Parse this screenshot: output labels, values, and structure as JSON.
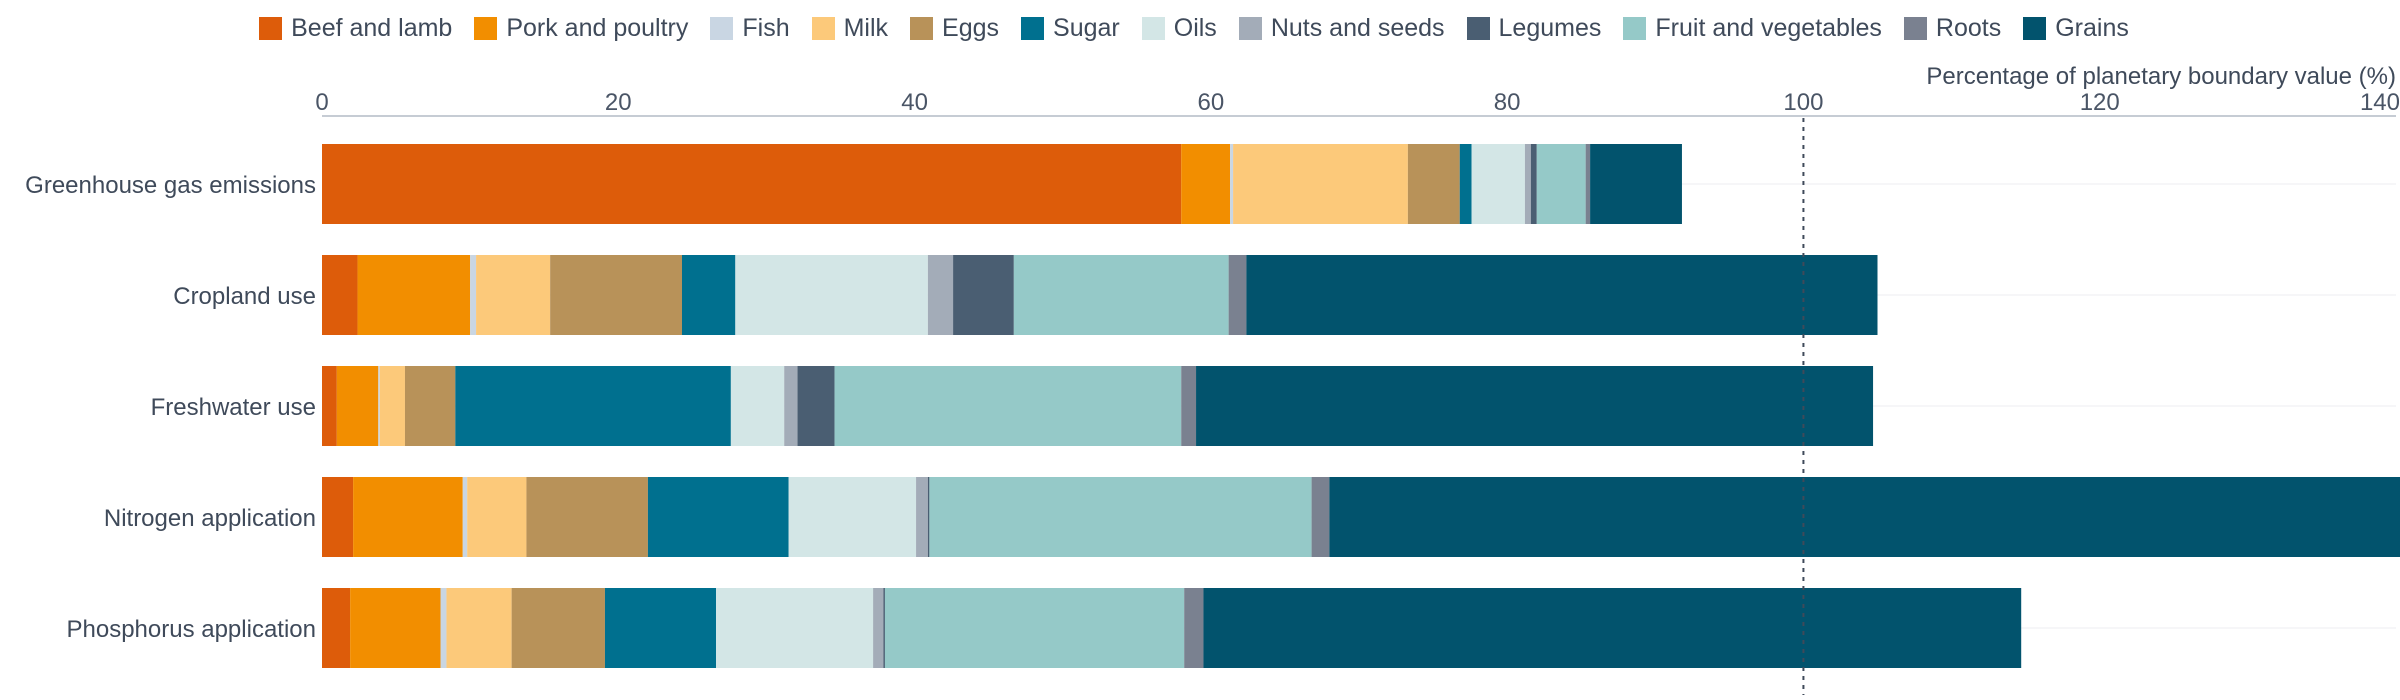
{
  "chart_data": {
    "type": "bar",
    "orientation": "horizontal",
    "stacked": true,
    "xlabel": "Percentage of planetary boundary value (%)",
    "xlim": [
      0,
      140
    ],
    "xticks": [
      0,
      20,
      40,
      60,
      80,
      100,
      120,
      140
    ],
    "reference_line": 100,
    "legend_position": "top",
    "categories": [
      "Greenhouse gas emissions",
      "Cropland use",
      "Freshwater use",
      "Nitrogen application",
      "Phosphorus application"
    ],
    "series": [
      {
        "name": "Beef and lamb",
        "color": "#dd5c0a",
        "values": [
          58.0,
          2.4,
          1.0,
          2.1,
          1.9
        ]
      },
      {
        "name": "Pork and poultry",
        "color": "#f28e00",
        "values": [
          3.3,
          7.6,
          2.8,
          7.4,
          6.1
        ]
      },
      {
        "name": "Fish",
        "color": "#c9d6e3",
        "values": [
          0.2,
          0.4,
          0.1,
          0.3,
          0.4
        ]
      },
      {
        "name": "Milk",
        "color": "#fcc97a",
        "values": [
          11.8,
          5.0,
          1.7,
          4.0,
          4.4
        ]
      },
      {
        "name": "Eggs",
        "color": "#b89259",
        "values": [
          3.5,
          8.9,
          3.4,
          8.2,
          6.3
        ]
      },
      {
        "name": "Sugar",
        "color": "#00708f",
        "values": [
          0.8,
          3.6,
          18.6,
          9.5,
          7.5
        ]
      },
      {
        "name": "Oils",
        "color": "#d3e6e6",
        "values": [
          3.6,
          13.0,
          3.6,
          8.6,
          10.6
        ]
      },
      {
        "name": "Nuts and seeds",
        "color": "#a3acb8",
        "values": [
          0.4,
          1.7,
          0.9,
          0.8,
          0.7
        ]
      },
      {
        "name": "Legumes",
        "color": "#4a5e72",
        "values": [
          0.4,
          4.1,
          2.5,
          0.1,
          0.1
        ]
      },
      {
        "name": "Fruit and vegetables",
        "color": "#95c9c8",
        "values": [
          3.3,
          14.5,
          23.4,
          25.8,
          20.2
        ]
      },
      {
        "name": "Roots",
        "color": "#7a8190",
        "values": [
          0.3,
          1.2,
          1.0,
          1.2,
          1.3
        ]
      },
      {
        "name": "Grains",
        "color": "#02536d",
        "values": [
          6.2,
          42.6,
          45.7,
          73.2,
          55.2
        ]
      }
    ]
  }
}
